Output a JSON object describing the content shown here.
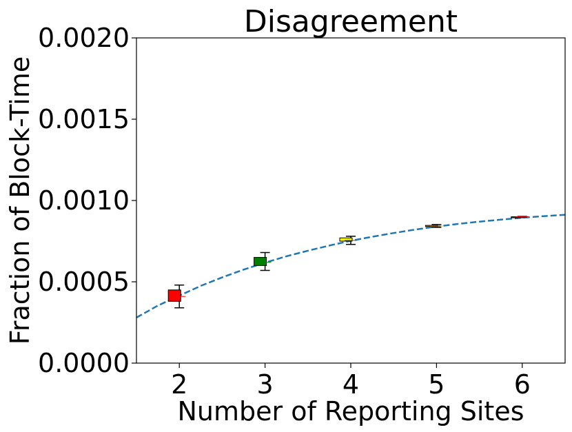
{
  "chart_data": {
    "type": "box",
    "title": "Disagreement",
    "xlabel": "Number of Reporting Sites",
    "ylabel": "Fraction of Block-Time",
    "xlim": [
      1.5,
      6.5
    ],
    "ylim": [
      0,
      0.002
    ],
    "x_ticks": [
      2,
      3,
      4,
      5,
      6
    ],
    "x_tick_labels": [
      "2",
      "3",
      "4",
      "5",
      "6"
    ],
    "y_ticks": [
      0,
      0.0005,
      0.001,
      0.0015,
      0.002
    ],
    "y_tick_labels": [
      "0.0000",
      "0.0005",
      "0.0010",
      "0.0015",
      "0.0020"
    ],
    "grid": false,
    "boxes": [
      {
        "x": 2,
        "whisker_low": 0.00034,
        "q1": 0.00038,
        "median": 0.00041,
        "q3": 0.00045,
        "whisker_high": 0.00048,
        "color": "#ff0000"
      },
      {
        "x": 3,
        "whisker_low": 0.00057,
        "q1": 0.0006,
        "median": 0.00062,
        "q3": 0.00065,
        "whisker_high": 0.00068,
        "color": "#008000"
      },
      {
        "x": 4,
        "whisker_low": 0.00073,
        "q1": 0.00075,
        "median": 0.000755,
        "q3": 0.00077,
        "whisker_high": 0.00078,
        "color": "#ffff00"
      },
      {
        "x": 5,
        "whisker_low": 0.000835,
        "q1": 0.00084,
        "median": 0.000843,
        "q3": 0.000847,
        "whisker_high": 0.000852,
        "color": "#ffa500"
      },
      {
        "x": 6,
        "whisker_low": 0.000898,
        "q1": 0.0009,
        "median": 0.0009,
        "q3": 0.0009,
        "whisker_high": 0.000902,
        "color": "#ff0000"
      }
    ],
    "fit_curve": {
      "style": "dashed",
      "color": "#1f77b4",
      "x": [
        1.5,
        1.75,
        2,
        2.25,
        2.5,
        2.75,
        3,
        3.25,
        3.5,
        3.75,
        4,
        4.25,
        4.5,
        4.75,
        5,
        5.25,
        5.5,
        5.75,
        6,
        6.25,
        6.5
      ],
      "y": [
        0.00028,
        0.000354,
        0.000415,
        0.000475,
        0.000527,
        0.000575,
        0.000618,
        0.000657,
        0.000691,
        0.000723,
        0.000752,
        0.000777,
        0.0008,
        0.000821,
        0.00084,
        0.000856,
        0.00087,
        0.000882,
        0.000894,
        0.000904,
        0.000912
      ]
    }
  }
}
